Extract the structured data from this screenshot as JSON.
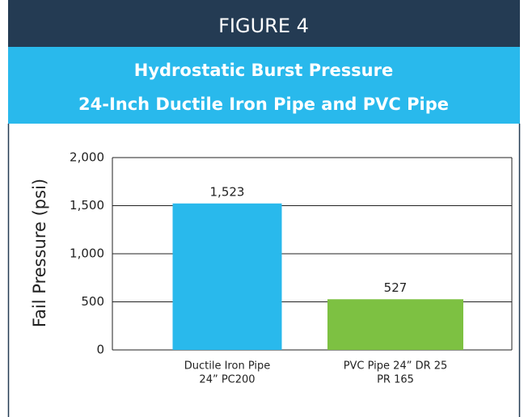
{
  "header": "FIGURE 4",
  "chart_data": {
    "type": "bar",
    "title": [
      "Hydrostatic Burst Pressure",
      "24-Inch Ductile Iron Pipe and PVC Pipe"
    ],
    "y_label": "Fail Pressure (psi)",
    "categories": [
      [
        "Ductile Iron Pipe",
        "24” PC200"
      ],
      [
        "PVC Pipe 24” DR 25",
        "PR 165"
      ]
    ],
    "values": [
      1523,
      527
    ],
    "value_labels": [
      "1,523",
      "527"
    ],
    "colors": [
      "#29b9ec",
      "#7dc142"
    ],
    "ylim": [
      0,
      2000
    ],
    "yticks": [
      0,
      500,
      {
        "value": 1000,
        "label": "1,000"
      },
      {
        "value": 1500,
        "label": "1,500"
      },
      {
        "value": 2000,
        "label": "2,000"
      }
    ],
    "grid": true
  }
}
